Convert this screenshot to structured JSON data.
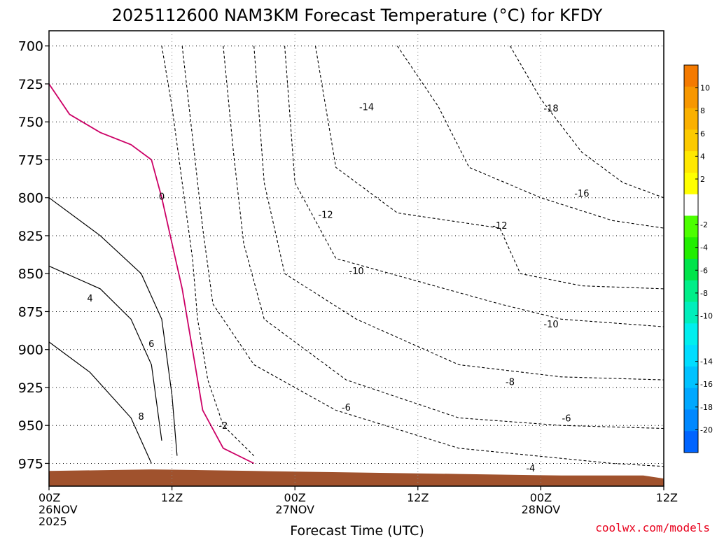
{
  "title": "2025112600 NAM3KM Forecast Temperature (°C) for KFDY",
  "watermark": "coolwx.com/models",
  "colors": {
    "terrain": "#A0522D",
    "frame": "#000000",
    "grid": "#000000",
    "contour": "#000000",
    "freezing_line": "#CC0066",
    "watermark": "#E8001C",
    "background": "#FFFFFF"
  },
  "chart_data": {
    "type": "heatmap",
    "title": "2025112600 NAM3KM Forecast Temperature (°C) for KFDY",
    "xlabel": "Forecast Time (UTC)",
    "ylabel": "",
    "x_unit": "hours since 00Z 26NOV 2025",
    "xlim": [
      0,
      60
    ],
    "ylim_hPa": [
      990,
      690
    ],
    "y_ticks": [
      700,
      725,
      750,
      775,
      800,
      825,
      850,
      875,
      900,
      925,
      950,
      975
    ],
    "x_ticks": [
      {
        "hour": 0,
        "line1": "00Z",
        "line2": "26NOV",
        "line3": "2025"
      },
      {
        "hour": 12,
        "line1": "12Z",
        "line2": "",
        "line3": ""
      },
      {
        "hour": 24,
        "line1": "00Z",
        "line2": "27NOV",
        "line3": ""
      },
      {
        "hour": 36,
        "line1": "12Z",
        "line2": "",
        "line3": ""
      },
      {
        "hour": 48,
        "line1": "00Z",
        "line2": "28NOV",
        "line3": ""
      },
      {
        "hour": 60,
        "line1": "12Z",
        "line2": "",
        "line3": ""
      }
    ],
    "grid": true,
    "colorbar": {
      "placement": "right",
      "levels": [
        12,
        10,
        8,
        6,
        4,
        2,
        0,
        -2,
        -4,
        -6,
        -8,
        -10,
        -12,
        -14,
        -16,
        -18,
        -20,
        -22
      ],
      "colors": [
        "#F47A00",
        "#F79700",
        "#FAB000",
        "#FCCA00",
        "#FFE800",
        "#FFFF00",
        "#FFFFFF",
        "#4CFF00",
        "#22EE00",
        "#00E44A",
        "#00EE88",
        "#00EEBB",
        "#00EEEE",
        "#00DDFF",
        "#00C2FF",
        "#00A8FF",
        "#0088FF",
        "#0064FF"
      ],
      "labels": [
        "10",
        "8",
        "6",
        "4",
        "2",
        "-2",
        "-4",
        "-6",
        "-8",
        "-10",
        "-14",
        "-16",
        "-18",
        "-20"
      ],
      "label_levels": [
        10,
        8,
        6,
        4,
        2,
        -2,
        -4,
        -6,
        -8,
        -10,
        -14,
        -16,
        -18,
        -20
      ]
    },
    "contour_labels": [
      {
        "text": "4",
        "hour": 4.0,
        "hPa": 866
      },
      {
        "text": "6",
        "hour": 10.0,
        "hPa": 896
      },
      {
        "text": "8",
        "hour": 9.0,
        "hPa": 944
      },
      {
        "text": "0",
        "hour": 11.0,
        "hPa": 799
      },
      {
        "text": "-2",
        "hour": 17.0,
        "hPa": 950
      },
      {
        "text": "-4",
        "hour": 47.0,
        "hPa": 978
      },
      {
        "text": "-6",
        "hour": 29.0,
        "hPa": 938
      },
      {
        "text": "-6",
        "hour": 50.5,
        "hPa": 945
      },
      {
        "text": "-8",
        "hour": 45.0,
        "hPa": 921
      },
      {
        "text": "-10",
        "hour": 30.0,
        "hPa": 848
      },
      {
        "text": "-10",
        "hour": 49.0,
        "hPa": 883
      },
      {
        "text": "-12",
        "hour": 27.0,
        "hPa": 811
      },
      {
        "text": "-12",
        "hour": 44.0,
        "hPa": 818
      },
      {
        "text": "-14",
        "hour": 31.0,
        "hPa": 740
      },
      {
        "text": "-16",
        "hour": 52.0,
        "hPa": 797
      },
      {
        "text": "-18",
        "hour": 49.0,
        "hPa": 741
      }
    ]
  }
}
